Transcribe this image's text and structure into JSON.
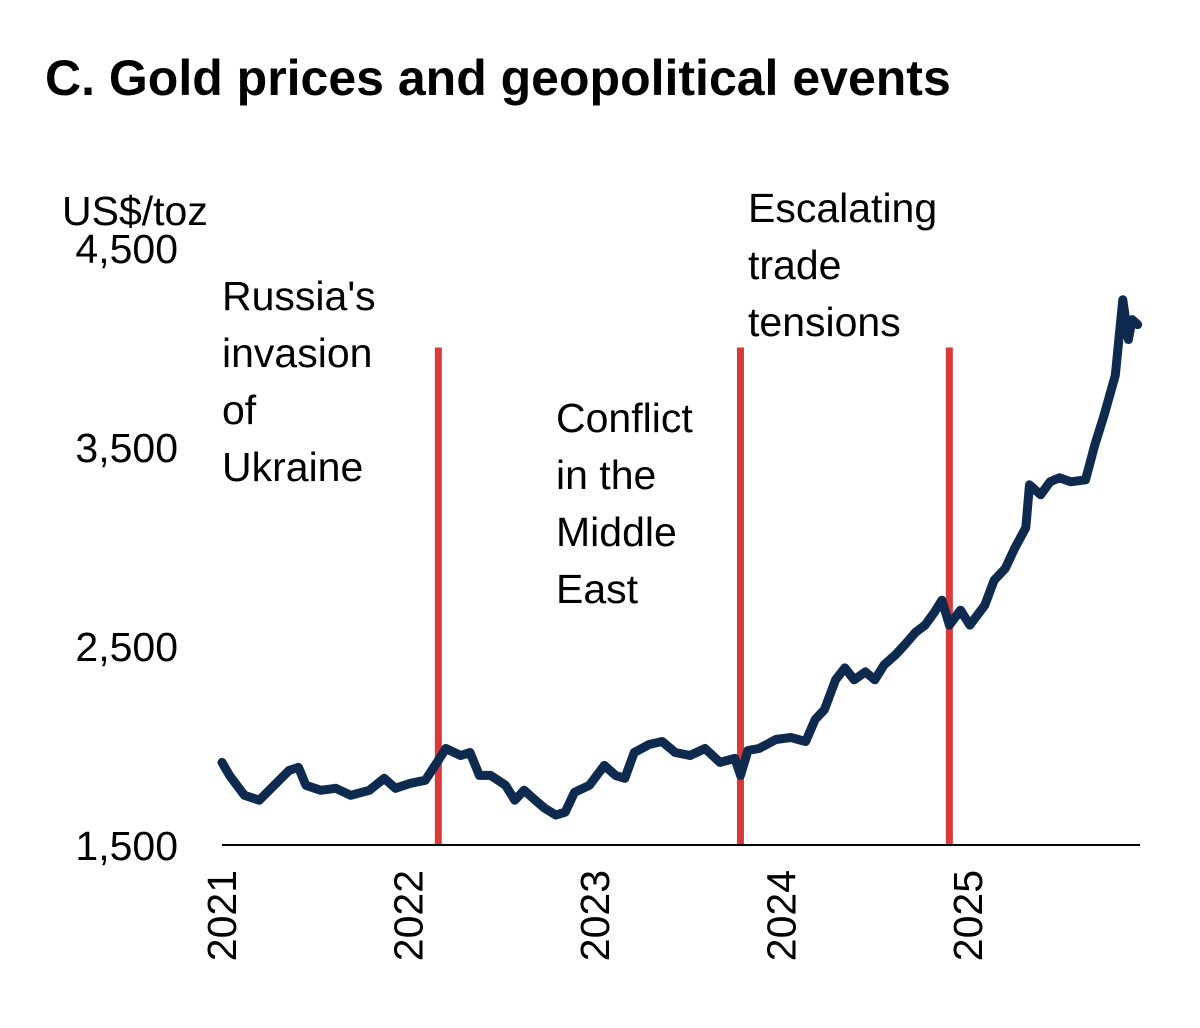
{
  "chart_data": {
    "type": "line",
    "title": "C. Gold prices and geopolitical events",
    "ylabel": "US$/toz",
    "xlabel": "",
    "ylim": [
      1500,
      4500
    ],
    "yticks": [
      "1,500",
      "2,500",
      "3,500",
      "4,500"
    ],
    "ytick_values": [
      1500,
      2500,
      3500,
      4500
    ],
    "xlim": [
      2021.0,
      2025.92
    ],
    "xticks": [
      "2021",
      "2022",
      "2023",
      "2024",
      "2025"
    ],
    "xtick_values": [
      2021,
      2022,
      2023,
      2024,
      2025
    ],
    "grid": false,
    "line_color": "#0f2a4f",
    "event_color": "#d93a3a",
    "events": [
      {
        "x": 2022.16,
        "top": 4000,
        "label": [
          "Russia's",
          "invasion",
          "of",
          "Ukraine"
        ]
      },
      {
        "x": 2023.78,
        "top": 4000,
        "label": [
          "Conflict",
          "in the",
          "Middle",
          "East"
        ]
      },
      {
        "x": 2024.9,
        "top": 4000,
        "label": [
          "Escalating",
          "trade",
          "tensions"
        ]
      }
    ],
    "series": [
      {
        "x": [
          2021.0,
          2021.04,
          2021.12,
          2021.2,
          2021.28,
          2021.36,
          2021.41,
          2021.45,
          2021.53,
          2021.61,
          2021.69,
          2021.79,
          2021.87,
          2021.93,
          2022.01,
          2022.09,
          2022.16,
          2022.2,
          2022.28,
          2022.33,
          2022.38,
          2022.44,
          2022.52,
          2022.57,
          2022.62,
          2022.68,
          2022.73,
          2022.79,
          2022.84,
          2022.89,
          2022.97,
          2023.05,
          2023.11,
          2023.16,
          2023.21,
          2023.29,
          2023.36,
          2023.43,
          2023.51,
          2023.59,
          2023.67,
          2023.75,
          2023.78,
          2023.82,
          2023.88,
          2023.97,
          2024.05,
          2024.13,
          2024.18,
          2024.23,
          2024.29,
          2024.34,
          2024.39,
          2024.45,
          2024.5,
          2024.55,
          2024.61,
          2024.66,
          2024.72,
          2024.77,
          2024.82,
          2024.86,
          2024.9,
          2024.96,
          2025.01,
          2025.09,
          2025.14,
          2025.2,
          2025.25,
          2025.31,
          2025.33,
          2025.39,
          2025.44,
          2025.49,
          2025.55,
          2025.63,
          2025.68,
          2025.73,
          2025.79,
          2025.83,
          2025.86,
          2025.88,
          2025.91
        ],
        "y": [
          1915,
          1850,
          1750,
          1725,
          1800,
          1875,
          1890,
          1800,
          1775,
          1785,
          1750,
          1775,
          1835,
          1785,
          1810,
          1825,
          1925,
          1985,
          1950,
          1965,
          1850,
          1850,
          1800,
          1725,
          1775,
          1725,
          1685,
          1650,
          1665,
          1765,
          1800,
          1900,
          1850,
          1835,
          1965,
          2005,
          2020,
          1965,
          1950,
          1985,
          1915,
          1935,
          1850,
          1975,
          1985,
          2030,
          2040,
          2020,
          2130,
          2180,
          2330,
          2390,
          2330,
          2370,
          2330,
          2405,
          2455,
          2505,
          2570,
          2605,
          2670,
          2730,
          2605,
          2680,
          2605,
          2705,
          2830,
          2890,
          2990,
          3095,
          3310,
          3260,
          3325,
          3345,
          3325,
          3335,
          3510,
          3660,
          3860,
          4240,
          4040,
          4140,
          4115
        ]
      }
    ]
  }
}
